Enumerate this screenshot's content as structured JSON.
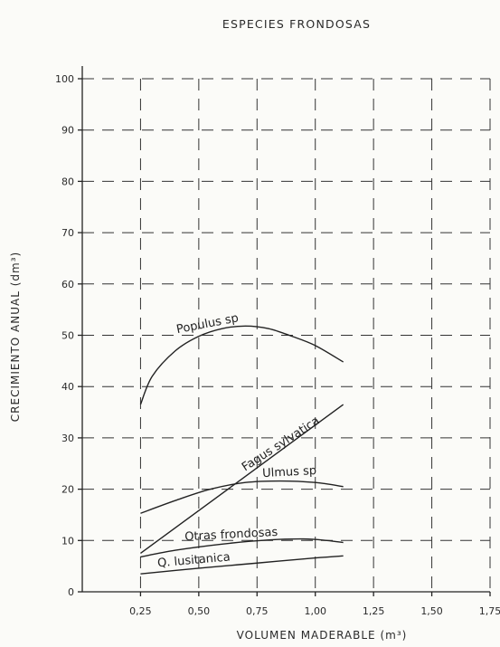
{
  "chart_data": {
    "type": "line",
    "title": "ESPECIES FRONDOSAS",
    "xlabel": "VOLUMEN MADERABLE (m³)",
    "ylabel": "CRECIMIENTO ANUAL (dm³)",
    "xlim": [
      0,
      1.75
    ],
    "ylim": [
      0,
      100
    ],
    "x_ticks": [
      0.25,
      0.5,
      0.75,
      1.0,
      1.25,
      1.5,
      1.75
    ],
    "x_tick_labels": [
      "0,25",
      "0,50",
      "0,75",
      "1,00",
      "1,25",
      "1,50",
      "1,75"
    ],
    "y_ticks": [
      0,
      10,
      20,
      30,
      40,
      50,
      60,
      70,
      80,
      90,
      100
    ],
    "y_tick_labels": [
      "0",
      "10",
      "20",
      "30",
      "40",
      "50",
      "60",
      "70",
      "80",
      "90",
      "100"
    ],
    "grid": true,
    "series": [
      {
        "name": "Populus sp",
        "x": [
          0.25,
          0.3,
          0.4,
          0.5,
          0.6,
          0.7,
          0.8,
          0.9,
          1.0,
          1.12
        ],
        "y": [
          36.5,
          42,
          47,
          49.8,
          51.3,
          51.8,
          51.3,
          49.8,
          48,
          44.8
        ]
      },
      {
        "name": "Fagus sylvatica",
        "x": [
          0.25,
          1.12
        ],
        "y": [
          7.5,
          36.5
        ]
      },
      {
        "name": "Ulmus sp",
        "x": [
          0.25,
          0.4,
          0.55,
          0.7,
          0.85,
          1.0,
          1.12
        ],
        "y": [
          15.3,
          17.8,
          20.0,
          21.3,
          21.6,
          21.3,
          20.5
        ]
      },
      {
        "name": "Otras frondosas",
        "x": [
          0.25,
          0.4,
          0.6,
          0.8,
          0.95,
          1.05,
          1.12
        ],
        "y": [
          6.8,
          8.1,
          9.3,
          10.1,
          10.3,
          10.0,
          9.6
        ]
      },
      {
        "name": "Q. lusitanica",
        "x": [
          0.25,
          0.5,
          0.75,
          1.0,
          1.12
        ],
        "y": [
          3.5,
          4.6,
          5.6,
          6.6,
          7.0
        ]
      }
    ]
  }
}
